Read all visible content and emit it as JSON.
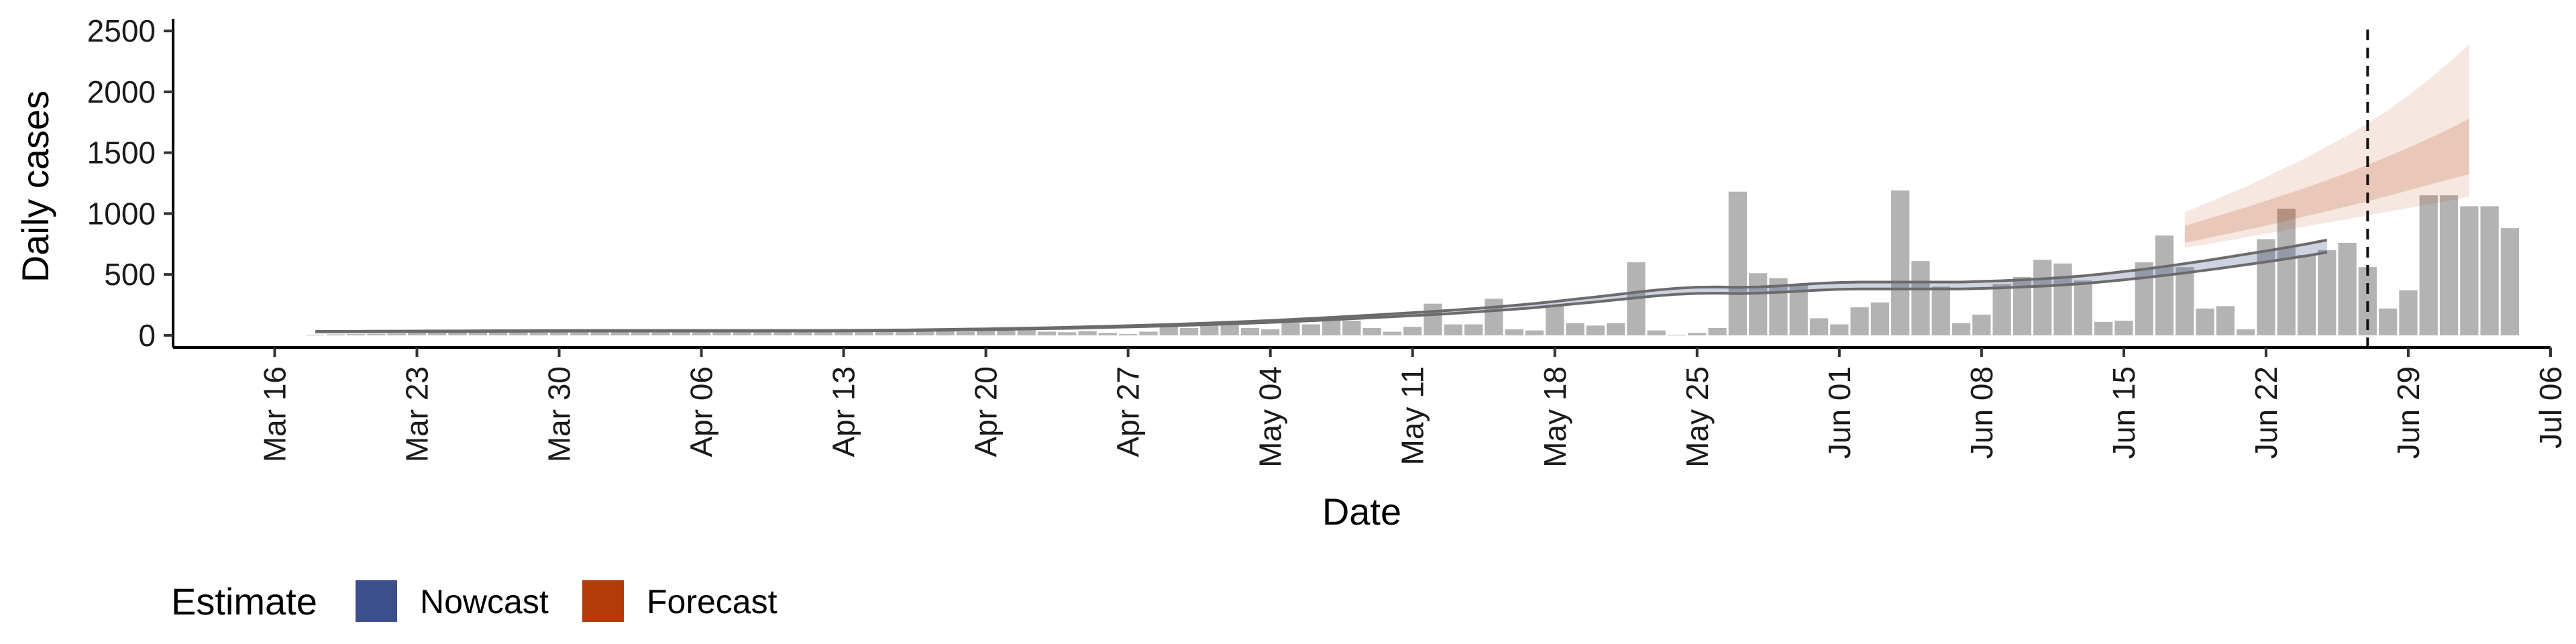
{
  "chart_data": {
    "type": "bar",
    "xlabel": "Date",
    "ylabel": "Daily cases",
    "ylim": [
      -100,
      2600
    ],
    "xlim": [
      "2020-03-11",
      "2020-07-06"
    ],
    "y_ticks": [
      0,
      500,
      1000,
      1500,
      2000,
      2500
    ],
    "y_tick_labels": [
      "0",
      "500",
      "1000",
      "1500",
      "2000",
      "2500"
    ],
    "x_ticks": [
      "2020-03-16",
      "2020-03-23",
      "2020-03-30",
      "2020-04-06",
      "2020-04-13",
      "2020-04-20",
      "2020-04-27",
      "2020-05-04",
      "2020-05-11",
      "2020-05-18",
      "2020-05-25",
      "2020-06-01",
      "2020-06-08",
      "2020-06-15",
      "2020-06-22",
      "2020-06-29",
      "2020-07-06"
    ],
    "x_tick_labels": [
      "Mar 16",
      "Mar 23",
      "Mar 30",
      "Apr 06",
      "Apr 13",
      "Apr 20",
      "Apr 27",
      "May 04",
      "May 11",
      "May 18",
      "May 25",
      "Jun 01",
      "Jun 08",
      "Jun 15",
      "Jun 22",
      "Jun 29",
      "Jul 06"
    ],
    "grid": false,
    "bars": {
      "start_date": "2020-03-18",
      "values": [
        5,
        8,
        10,
        12,
        15,
        18,
        20,
        22,
        25,
        28,
        30,
        32,
        35,
        38,
        35,
        30,
        40,
        45,
        50,
        42,
        38,
        30,
        25,
        35,
        40,
        30,
        28,
        35,
        40,
        45,
        38,
        32,
        30,
        35,
        40,
        45,
        30,
        25,
        35,
        20,
        10,
        30,
        70,
        60,
        80,
        90,
        60,
        50,
        100,
        90,
        140,
        120,
        60,
        30,
        70,
        260,
        90,
        90,
        300,
        50,
        40,
        250,
        100,
        80,
        100,
        600,
        40,
        5,
        20,
        60,
        1180,
        510,
        470,
        420,
        140,
        90,
        230,
        270,
        1190,
        610,
        400,
        100,
        170,
        420,
        480,
        620,
        590,
        450,
        110,
        120,
        600,
        820,
        560,
        220,
        240,
        50,
        790,
        1040,
        660,
        700,
        760,
        560,
        220,
        370,
        1150,
        1150,
        1060,
        1060,
        880
      ],
      "color": "#b3b3b3"
    },
    "series": [
      {
        "name": "Nowcast",
        "color": "#3b4f8a",
        "start_date": "2020-03-18",
        "median": [
          30,
          30,
          31,
          31,
          32,
          32,
          33,
          33,
          34,
          35,
          35,
          36,
          36,
          37,
          37,
          37,
          37,
          37,
          37,
          37,
          37,
          37,
          37,
          37,
          37,
          37,
          38,
          39,
          40,
          41,
          43,
          45,
          47,
          49,
          52,
          55,
          58,
          61,
          65,
          69,
          73,
          78,
          83,
          88,
          94,
          100,
          106,
          113,
          120,
          128,
          136,
          145,
          154,
          163,
          172,
          181,
          192,
          203,
          215,
          228,
          242,
          258,
          275,
          292,
          310,
          328,
          345,
          358,
          366,
          368,
          365,
          368,
          375,
          385,
          395,
          402,
          405,
          405,
          405,
          405,
          405,
          405,
          410,
          415,
          422,
          430,
          440,
          452,
          468,
          485,
          503,
          523,
          545,
          568,
          592,
          617,
          642,
          668,
          695,
          725
        ],
        "upper": [
          32,
          32,
          33,
          34,
          34,
          35,
          36,
          36,
          37,
          38,
          38,
          39,
          39,
          40,
          40,
          40,
          40,
          40,
          40,
          40,
          40,
          40,
          40,
          40,
          40,
          40,
          41,
          42,
          43,
          44,
          46,
          48,
          51,
          53,
          56,
          59,
          62,
          66,
          70,
          74,
          79,
          84,
          89,
          95,
          101,
          108,
          114,
          122,
          130,
          138,
          147,
          157,
          166,
          176,
          186,
          196,
          207,
          219,
          232,
          246,
          261,
          278,
          297,
          315,
          334,
          354,
          372,
          386,
          395,
          397,
          394,
          397,
          405,
          416,
          427,
          434,
          437,
          437,
          437,
          437,
          437,
          437,
          443,
          448,
          456,
          464,
          475,
          488,
          505,
          524,
          543,
          565,
          589,
          613,
          639,
          666,
          693,
          721,
          750,
          783
        ],
        "lower": [
          28,
          28,
          29,
          29,
          30,
          30,
          31,
          31,
          32,
          33,
          33,
          34,
          34,
          35,
          35,
          35,
          35,
          35,
          35,
          35,
          35,
          35,
          35,
          35,
          35,
          35,
          36,
          37,
          38,
          38,
          40,
          42,
          44,
          46,
          49,
          52,
          55,
          57,
          61,
          65,
          69,
          73,
          78,
          83,
          88,
          94,
          100,
          106,
          113,
          120,
          128,
          136,
          145,
          153,
          162,
          170,
          180,
          191,
          202,
          214,
          227,
          243,
          259,
          274,
          291,
          308,
          324,
          337,
          344,
          346,
          343,
          346,
          353,
          362,
          371,
          378,
          381,
          381,
          381,
          381,
          381,
          381,
          385,
          390,
          397,
          404,
          414,
          425,
          440,
          456,
          473,
          492,
          512,
          534,
          556,
          580,
          603,
          628,
          653,
          682
        ]
      },
      {
        "name": "Forecast",
        "color": "#b33b0a",
        "start_date": "2020-06-18",
        "median": [
          780,
          820,
          860,
          900,
          945,
          990,
          1035,
          1080,
          1130,
          1180,
          1230,
          1280,
          1330,
          1380,
          1435
        ],
        "upper_90": [
          1010,
          1080,
          1150,
          1220,
          1300,
          1380,
          1460,
          1550,
          1640,
          1740,
          1850,
          1970,
          2100,
          2240,
          2390
        ],
        "lower_90": [
          720,
          745,
          775,
          805,
          835,
          865,
          895,
          925,
          955,
          985,
          1015,
          1045,
          1075,
          1105,
          1140
        ],
        "upper_50": [
          900,
          950,
          1000,
          1050,
          1105,
          1160,
          1215,
          1275,
          1335,
          1400,
          1470,
          1540,
          1615,
          1695,
          1780
        ],
        "lower_50": [
          760,
          795,
          830,
          865,
          900,
          940,
          980,
          1020,
          1060,
          1100,
          1145,
          1190,
          1235,
          1280,
          1325
        ]
      }
    ],
    "vline_date": "2020-06-27",
    "legend": {
      "title": "Estimate",
      "position": "bottom-left",
      "entries": [
        {
          "label": "Nowcast",
          "color": "#3b4f8a"
        },
        {
          "label": "Forecast",
          "color": "#b33b0a"
        }
      ]
    }
  }
}
